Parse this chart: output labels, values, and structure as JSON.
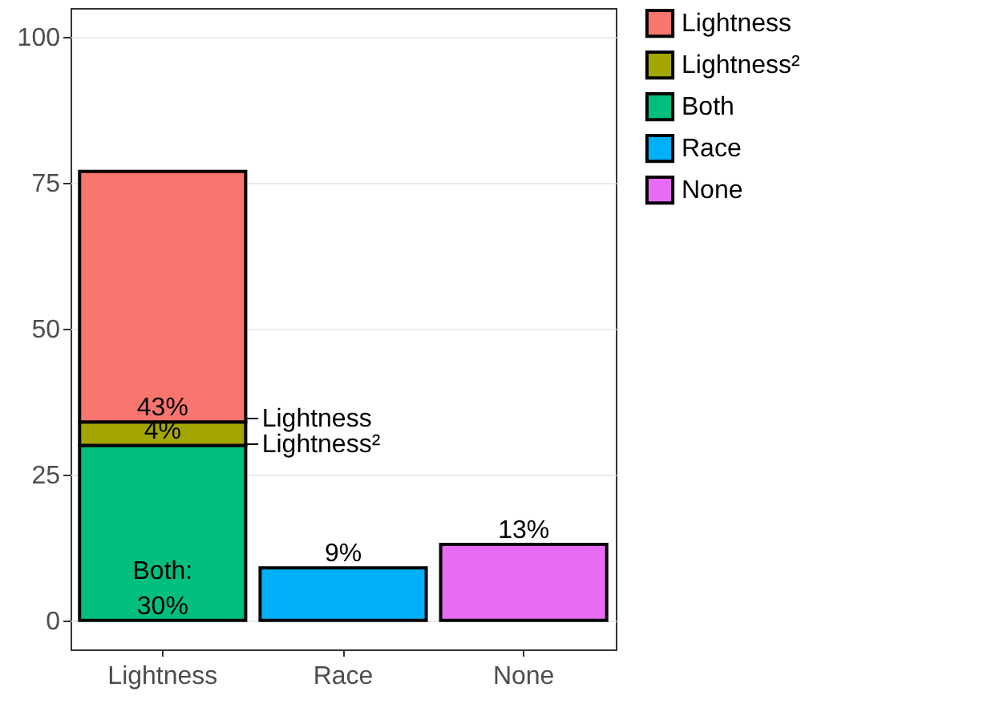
{
  "chart_data": {
    "type": "bar",
    "stacked": true,
    "categories": [
      "Lightness",
      "Race",
      "None"
    ],
    "series": [
      {
        "name": "None",
        "color": "#e76bf3",
        "values": [
          null,
          null,
          13
        ],
        "value_labels": [
          null,
          null,
          "13%"
        ]
      },
      {
        "name": "Race",
        "color": "#00b0f6",
        "values": [
          null,
          9,
          null
        ],
        "value_labels": [
          null,
          "9%",
          null
        ]
      },
      {
        "name": "Both",
        "color": "#00bf7d",
        "values": [
          30,
          null,
          null
        ],
        "value_labels": [
          "Both:\n30%",
          null,
          null
        ]
      },
      {
        "name": "Lightness²",
        "color": "#a3a500",
        "values": [
          4,
          null,
          null
        ],
        "value_labels": [
          "4%",
          null,
          null
        ]
      },
      {
        "name": "Lightness",
        "color": "#f8766d",
        "values": [
          43,
          null,
          null
        ],
        "value_labels": [
          "43%",
          null,
          null
        ]
      }
    ],
    "ylim": [
      -5,
      105
    ],
    "yticks": [
      0,
      25,
      50,
      75,
      100
    ],
    "grid": "y",
    "legend": "right",
    "annotations": [
      "Lightness",
      "Lightness²"
    ]
  }
}
